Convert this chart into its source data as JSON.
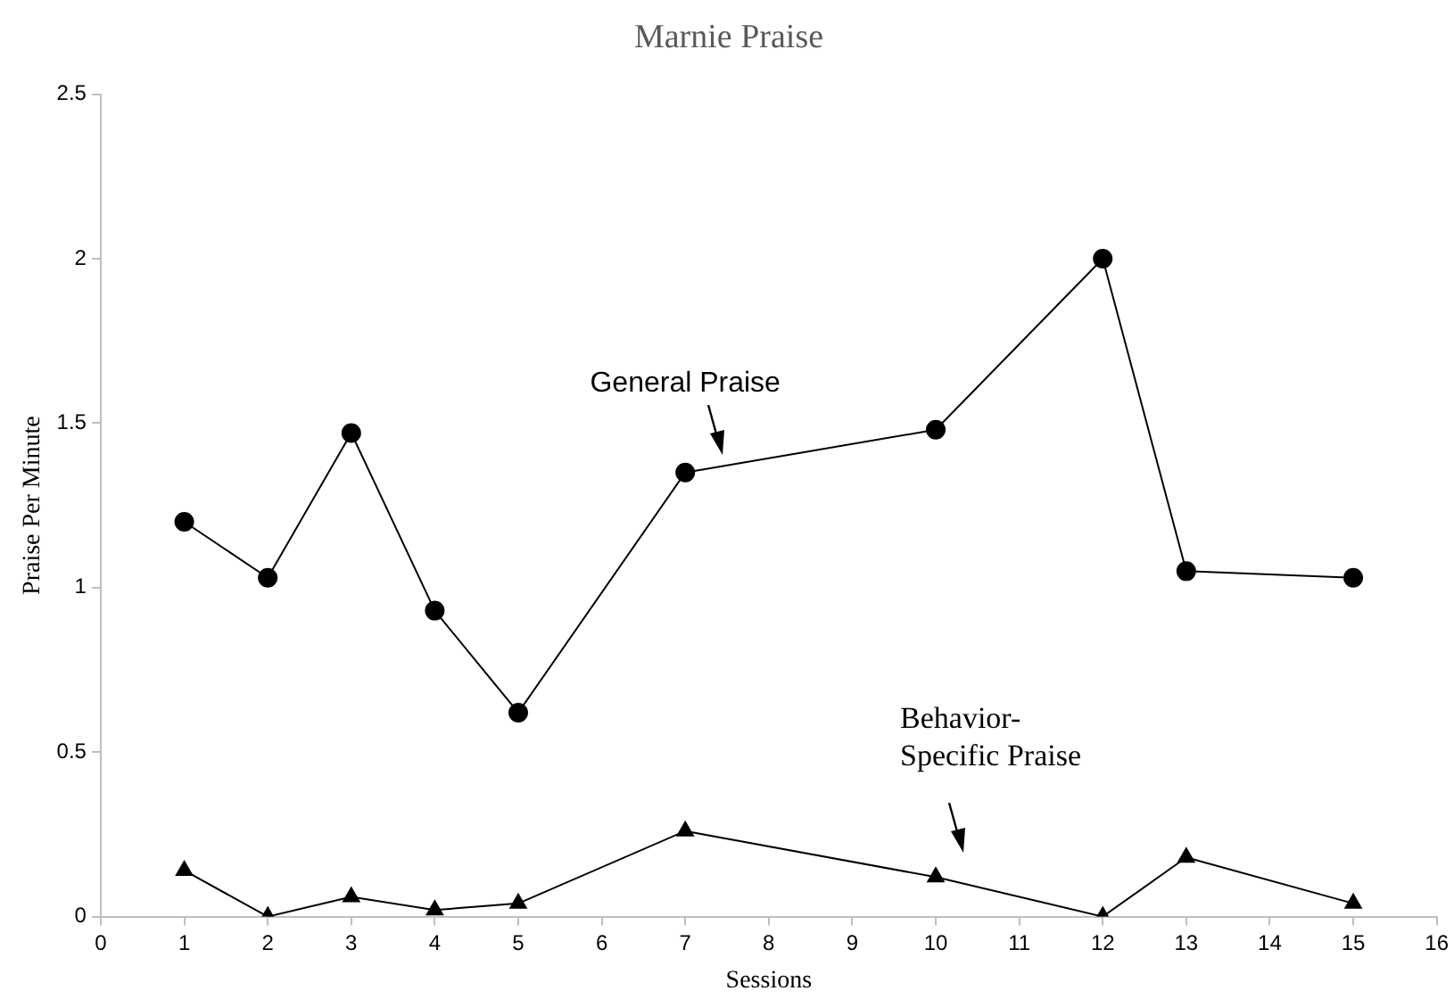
{
  "chart_data": {
    "type": "line",
    "title": "Marnie Praise",
    "xlabel": "Sessions",
    "ylabel": "Praise Per Minute",
    "xlim": [
      0,
      16
    ],
    "xticks": [
      0,
      1,
      2,
      3,
      4,
      5,
      6,
      7,
      8,
      9,
      10,
      11,
      12,
      13,
      14,
      15,
      16
    ],
    "ylim": [
      0,
      2.5
    ],
    "yticks": [
      0,
      0.5,
      1,
      1.5,
      2,
      2.5
    ],
    "grid": false,
    "legend": false,
    "series": [
      {
        "name": "General Praise",
        "color": "#000000",
        "marker": "circle",
        "x": [
          1,
          2,
          3,
          4,
          5,
          7,
          10,
          12,
          13,
          15
        ],
        "values": [
          1.2,
          1.03,
          1.47,
          0.93,
          0.62,
          1.35,
          1.48,
          2.0,
          1.05,
          1.03
        ]
      },
      {
        "name": "Behavior-\nSpecific Praise",
        "color": "#000000",
        "marker": "triangle",
        "x": [
          1,
          2,
          3,
          4,
          5,
          7,
          10,
          12,
          13,
          15
        ],
        "values": [
          0.14,
          0,
          0.06,
          0.02,
          0.04,
          0.26,
          0.12,
          0,
          0.18,
          0.04
        ]
      }
    ]
  }
}
